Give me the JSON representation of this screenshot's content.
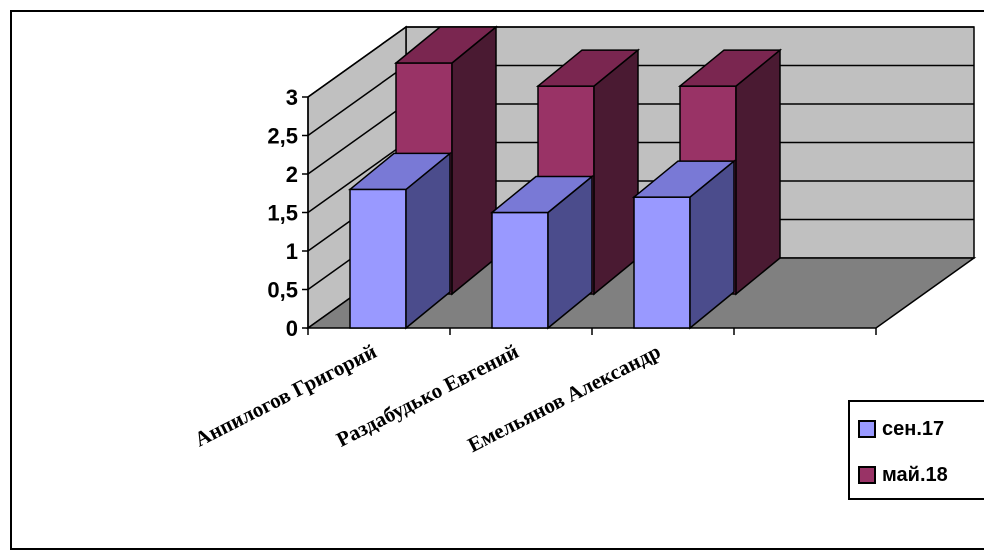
{
  "chart_data": {
    "type": "bar",
    "style": "3d-clustered-column",
    "categories": [
      "Анпилогов Григорий",
      "Раздабудько Евгений",
      "Емельянов Александр"
    ],
    "series": [
      {
        "name": "сен.17",
        "values": [
          1.8,
          1.5,
          1.7
        ],
        "color": "#9999FF",
        "side_color": "#4B4C8C",
        "top_color": "#7979D6"
      },
      {
        "name": "май.18",
        "values": [
          3.0,
          2.7,
          2.7
        ],
        "color": "#993366",
        "side_color": "#4A1A32",
        "top_color": "#7A2650"
      }
    ],
    "y_ticks": [
      "0",
      "0,5",
      "1",
      "1,5",
      "2",
      "2,5",
      "3"
    ],
    "ylim": [
      0,
      3
    ],
    "grid": true,
    "wall_color": "#C0C0C0",
    "floor_color": "#808080",
    "legend_position": "bottom-right"
  },
  "legend": {
    "items": [
      {
        "label": "сен.17",
        "color": "#9999FF"
      },
      {
        "label": "май.18",
        "color": "#993366"
      }
    ]
  }
}
